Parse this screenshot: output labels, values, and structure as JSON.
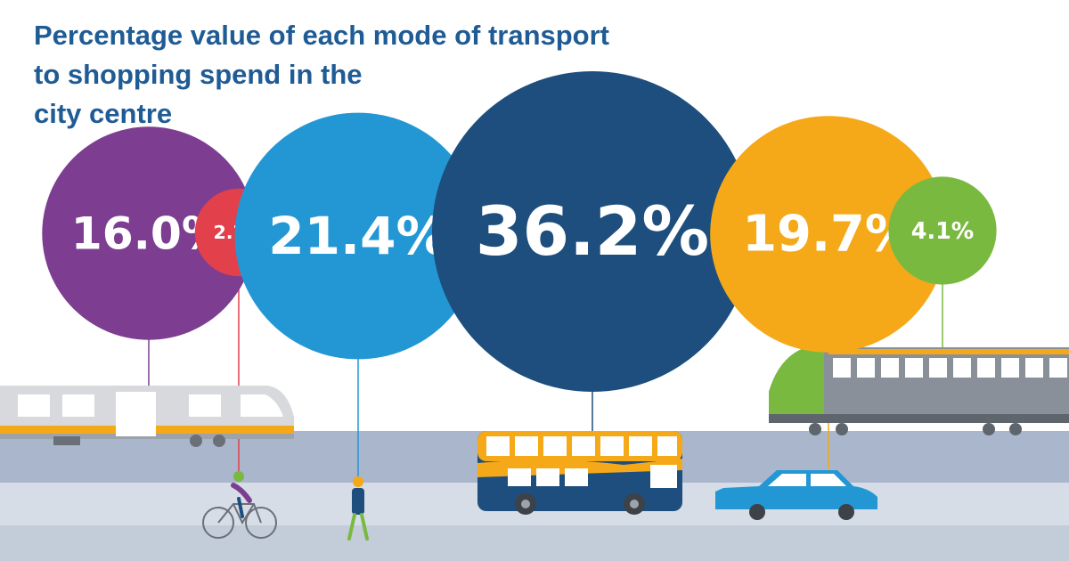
{
  "header": {
    "title_lines": [
      "Percentage value of each mode of transport",
      "to shopping spend in the",
      "city centre"
    ]
  },
  "chart_data": {
    "type": "bubble",
    "unit": "%",
    "series": [
      {
        "name": "Tram",
        "value": 16.0,
        "label": "16.0%",
        "color": "#7d3e91",
        "icon": "tram-icon"
      },
      {
        "name": "Cycle",
        "value": 2.7,
        "label": "2.7%",
        "color": "#e2404b",
        "icon": "bicycle-icon"
      },
      {
        "name": "Walk",
        "value": 21.4,
        "label": "21.4%",
        "color": "#2397d4",
        "icon": "pedestrian-icon"
      },
      {
        "name": "Bus",
        "value": 36.2,
        "label": "36.2%",
        "color": "#1d4e7e",
        "icon": "bus-icon"
      },
      {
        "name": "Car",
        "value": 19.7,
        "label": "19.7%",
        "color": "#f5a918",
        "icon": "car-icon"
      },
      {
        "name": "Train",
        "value": 4.1,
        "label": "4.1%",
        "color": "#7ab940",
        "icon": "train-icon"
      }
    ]
  },
  "colors": {
    "title": "#1f5b94",
    "road": "#a9b6cc",
    "pavement": "#d6dde7",
    "vehicle_grey": "#d7d9dc",
    "stripe_yellow": "#f5a918"
  }
}
